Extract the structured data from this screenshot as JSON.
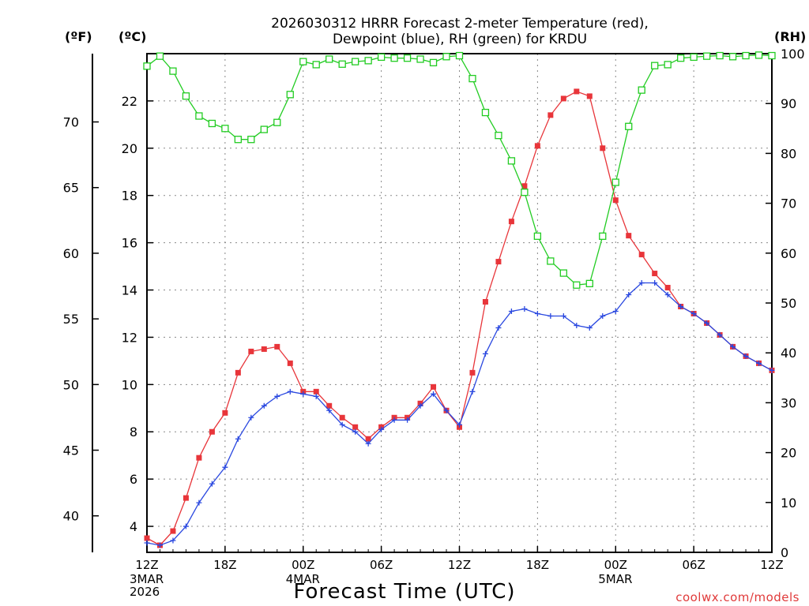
{
  "chart_data": {
    "type": "line",
    "title": [
      "2026030312 HRRR Forecast 2-meter Temperature (red),",
      "Dewpoint (blue), RH (green) for KRDU"
    ],
    "xlabel": "Forecast Time (UTC)",
    "credit": "coolwx.com/models",
    "unit_labels": {
      "fahrenheit": "(ºF)",
      "celsius": "(ºC)",
      "rh": "(RH)"
    },
    "x_range_hours": [
      0,
      48
    ],
    "x_ticks": [
      {
        "h": 0,
        "label": "12Z",
        "sub": [
          "3MAR",
          "2026"
        ]
      },
      {
        "h": 6,
        "label": "18Z",
        "sub": []
      },
      {
        "h": 12,
        "label": "00Z",
        "sub": [
          "4MAR"
        ]
      },
      {
        "h": 18,
        "label": "06Z",
        "sub": []
      },
      {
        "h": 24,
        "label": "12Z",
        "sub": []
      },
      {
        "h": 30,
        "label": "18Z",
        "sub": []
      },
      {
        "h": 36,
        "label": "00Z",
        "sub": [
          "5MAR"
        ]
      },
      {
        "h": 42,
        "label": "06Z",
        "sub": []
      },
      {
        "h": 48,
        "label": "12Z",
        "sub": []
      }
    ],
    "y_celsius": {
      "range": [
        2.9,
        24.0
      ],
      "ticks": [
        4,
        6,
        8,
        10,
        12,
        14,
        16,
        18,
        20,
        22
      ]
    },
    "y_fahrenheit": {
      "ticks": [
        40,
        45,
        50,
        55,
        60,
        65,
        70
      ]
    },
    "y_rh": {
      "range": [
        0,
        100
      ],
      "ticks": [
        0,
        10,
        20,
        30,
        40,
        50,
        60,
        70,
        80,
        90,
        100
      ]
    },
    "grid": true,
    "series": [
      {
        "name": "Temperature (red)",
        "axis": "celsius",
        "color": "#e8353a",
        "marker": "filled-square",
        "values": [
          3.5,
          3.2,
          3.8,
          5.2,
          6.9,
          8.0,
          8.8,
          10.5,
          11.4,
          11.5,
          11.6,
          10.9,
          9.7,
          9.7,
          9.1,
          8.6,
          8.2,
          7.7,
          8.2,
          8.6,
          8.6,
          9.2,
          9.9,
          8.9,
          8.2,
          10.5,
          13.5,
          15.2,
          16.9,
          18.4,
          20.1,
          21.4,
          22.1,
          22.4,
          22.2,
          20.0,
          17.8,
          16.3,
          15.5,
          14.7,
          14.1,
          13.3,
          13.0,
          12.6,
          12.1,
          11.6,
          11.2,
          10.9,
          10.6
        ]
      },
      {
        "name": "Dewpoint (blue)",
        "axis": "celsius",
        "color": "#2a48e0",
        "marker": "plus",
        "values": [
          3.3,
          3.2,
          3.4,
          4.0,
          5.0,
          5.8,
          6.5,
          7.7,
          8.6,
          9.1,
          9.5,
          9.7,
          9.6,
          9.5,
          8.9,
          8.3,
          8.0,
          7.5,
          8.1,
          8.5,
          8.5,
          9.1,
          9.6,
          8.9,
          8.3,
          9.7,
          11.3,
          12.4,
          13.1,
          13.2,
          13.0,
          12.9,
          12.9,
          12.5,
          12.4,
          12.9,
          13.1,
          13.8,
          14.3,
          14.3,
          13.8,
          13.3,
          13.0,
          12.6,
          12.1,
          11.6,
          11.2,
          10.9,
          10.6
        ]
      },
      {
        "name": "RH (green)",
        "axis": "rh",
        "color": "#22cc22",
        "marker": "open-square",
        "values": [
          97.5,
          99.5,
          96.5,
          91.5,
          87.5,
          86.0,
          85.0,
          82.8,
          82.8,
          84.8,
          86.2,
          91.8,
          98.4,
          97.8,
          98.9,
          97.9,
          98.4,
          98.6,
          99.3,
          99.1,
          99.1,
          98.9,
          98.2,
          99.4,
          99.6,
          95.0,
          88.2,
          83.6,
          78.5,
          72.2,
          63.4,
          58.4,
          56.0,
          53.6,
          53.9,
          63.4,
          74.2,
          85.4,
          92.7,
          97.6,
          97.8,
          99.1,
          99.3,
          99.5,
          99.6,
          99.4,
          99.6,
          99.7,
          99.6
        ]
      }
    ]
  }
}
